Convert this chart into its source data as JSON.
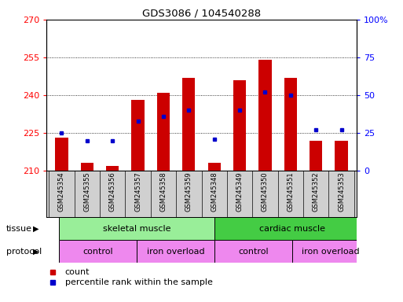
{
  "title": "GDS3086 / 104540288",
  "samples": [
    "GSM245354",
    "GSM245355",
    "GSM245356",
    "GSM245357",
    "GSM245358",
    "GSM245359",
    "GSM245348",
    "GSM245349",
    "GSM245350",
    "GSM245351",
    "GSM245352",
    "GSM245353"
  ],
  "bar_bottom": 210,
  "bar_tops": [
    223,
    213,
    212,
    238,
    241,
    247,
    213,
    246,
    254,
    247,
    222,
    222
  ],
  "blue_dots_pct": [
    25,
    20,
    20,
    33,
    36,
    40,
    21,
    40,
    52,
    50,
    27,
    27
  ],
  "ylim_left": [
    210,
    270
  ],
  "ylim_right": [
    0,
    100
  ],
  "yticks_left": [
    210,
    225,
    240,
    255,
    270
  ],
  "yticks_right": [
    0,
    25,
    50,
    75,
    100
  ],
  "bar_color": "#cc0000",
  "dot_color": "#0000cc",
  "tissue_bg_left": "#99ee99",
  "tissue_bg_right": "#44cc44",
  "tissue_labels": [
    "skeletal muscle",
    "cardiac muscle"
  ],
  "protocol_color": "#ee88ee",
  "protocol_labels": [
    "control",
    "iron overload",
    "control",
    "iron overload"
  ],
  "sample_box_color": "#d0d0d0",
  "legend_count_label": "count",
  "legend_pct_label": "percentile rank within the sample",
  "background_color": "#ffffff"
}
